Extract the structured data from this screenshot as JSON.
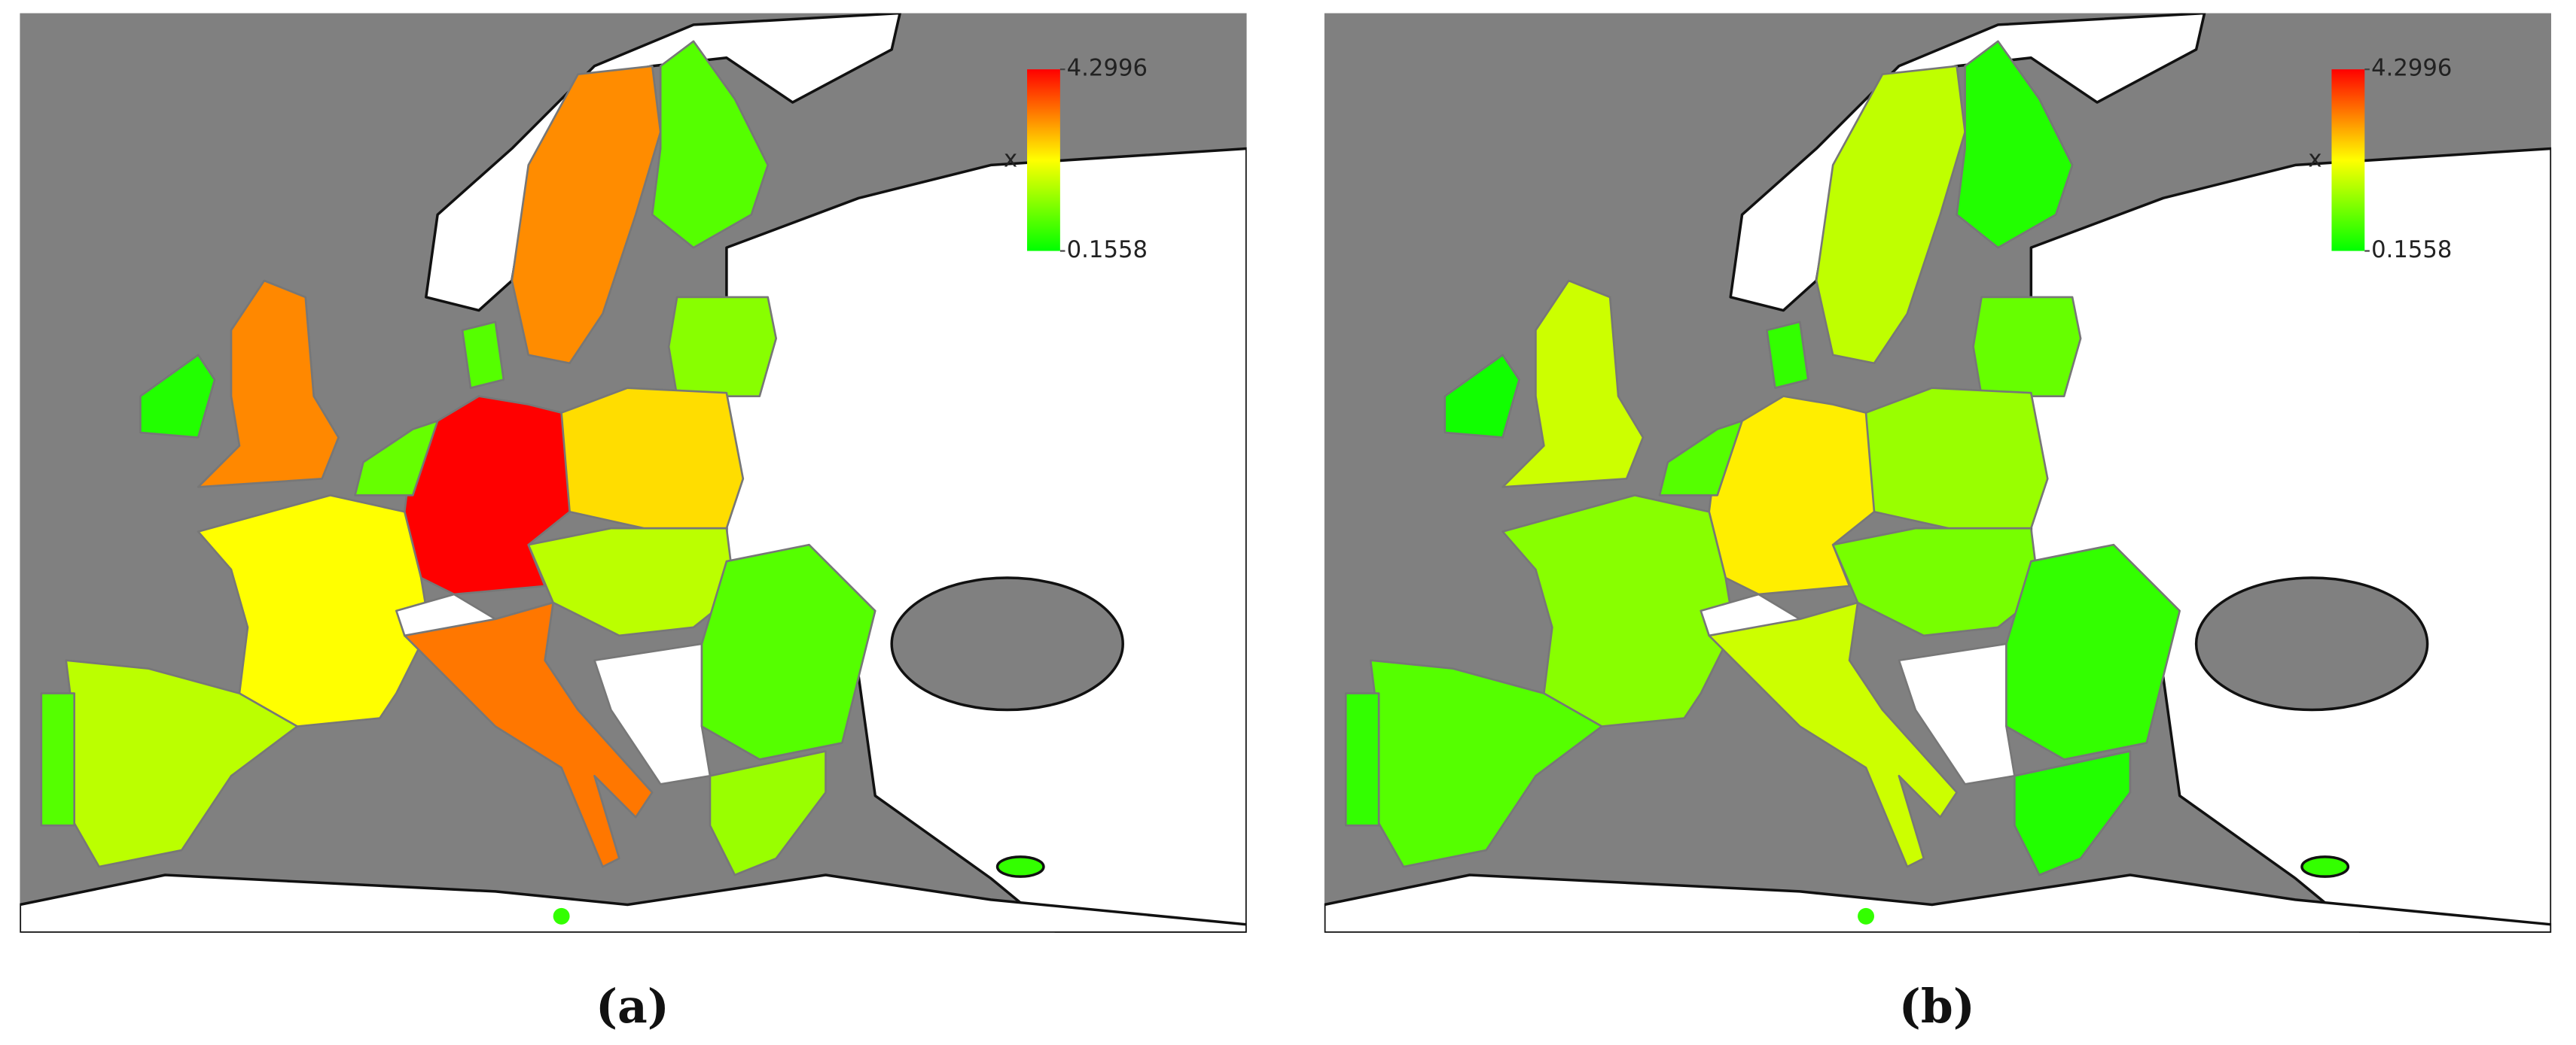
{
  "panels": [
    {
      "caption": "(a)",
      "colorbar": {
        "label": "x",
        "max": 4.2996,
        "min": 0.1558,
        "colors": [
          "#00ff00",
          "#ffff00",
          "#ff0000"
        ]
      }
    },
    {
      "caption": "(b)",
      "colorbar": {
        "label": "x",
        "max": 4.2996,
        "min": 0.1558,
        "colors": [
          "#00ff00",
          "#ffff00",
          "#ff0000"
        ]
      }
    }
  ]
}
